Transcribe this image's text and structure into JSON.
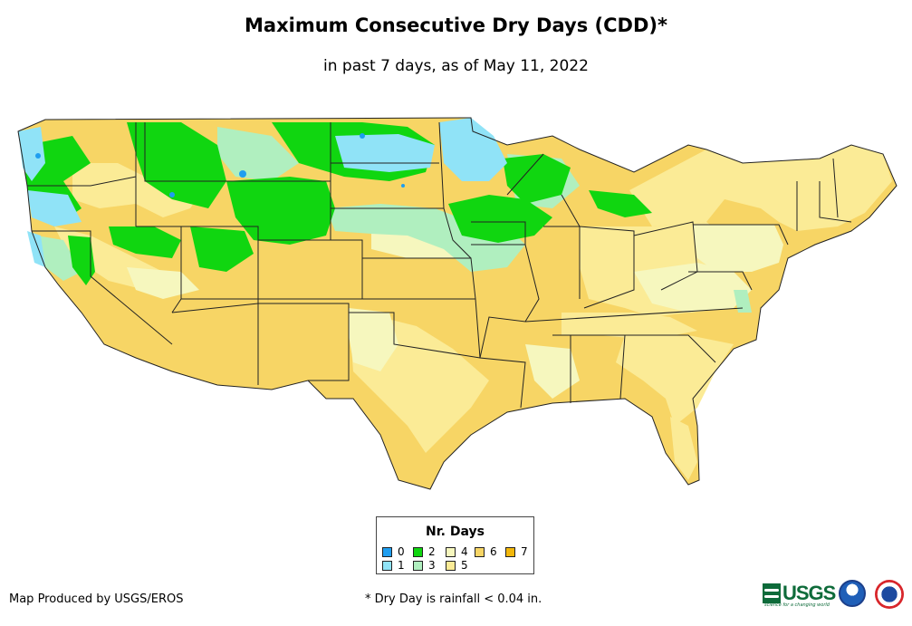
{
  "title": "Maximum Consecutive Dry Days (CDD)*",
  "subtitle": "in past 7 days, as of May 11, 2022",
  "legend": {
    "title": "Nr. Days",
    "items": [
      {
        "label": "0",
        "color": "#1f9ef0"
      },
      {
        "label": "1",
        "color": "#90e3f7"
      },
      {
        "label": "2",
        "color": "#10d610"
      },
      {
        "label": "3",
        "color": "#b0efbf"
      },
      {
        "label": "4",
        "color": "#f6f7be"
      },
      {
        "label": "5",
        "color": "#fbeb96"
      },
      {
        "label": "6",
        "color": "#f7d565"
      },
      {
        "label": "7",
        "color": "#f2b70b"
      }
    ]
  },
  "footer": {
    "producer": "Map Produced by USGS/EROS",
    "note": "* Dry Day is rainfall < 0.04 in."
  },
  "logos": {
    "usgs": "USGS",
    "usgs_tagline": "science for a changing world",
    "noaa": "noaa-logo",
    "nws": "nws-logo"
  }
}
